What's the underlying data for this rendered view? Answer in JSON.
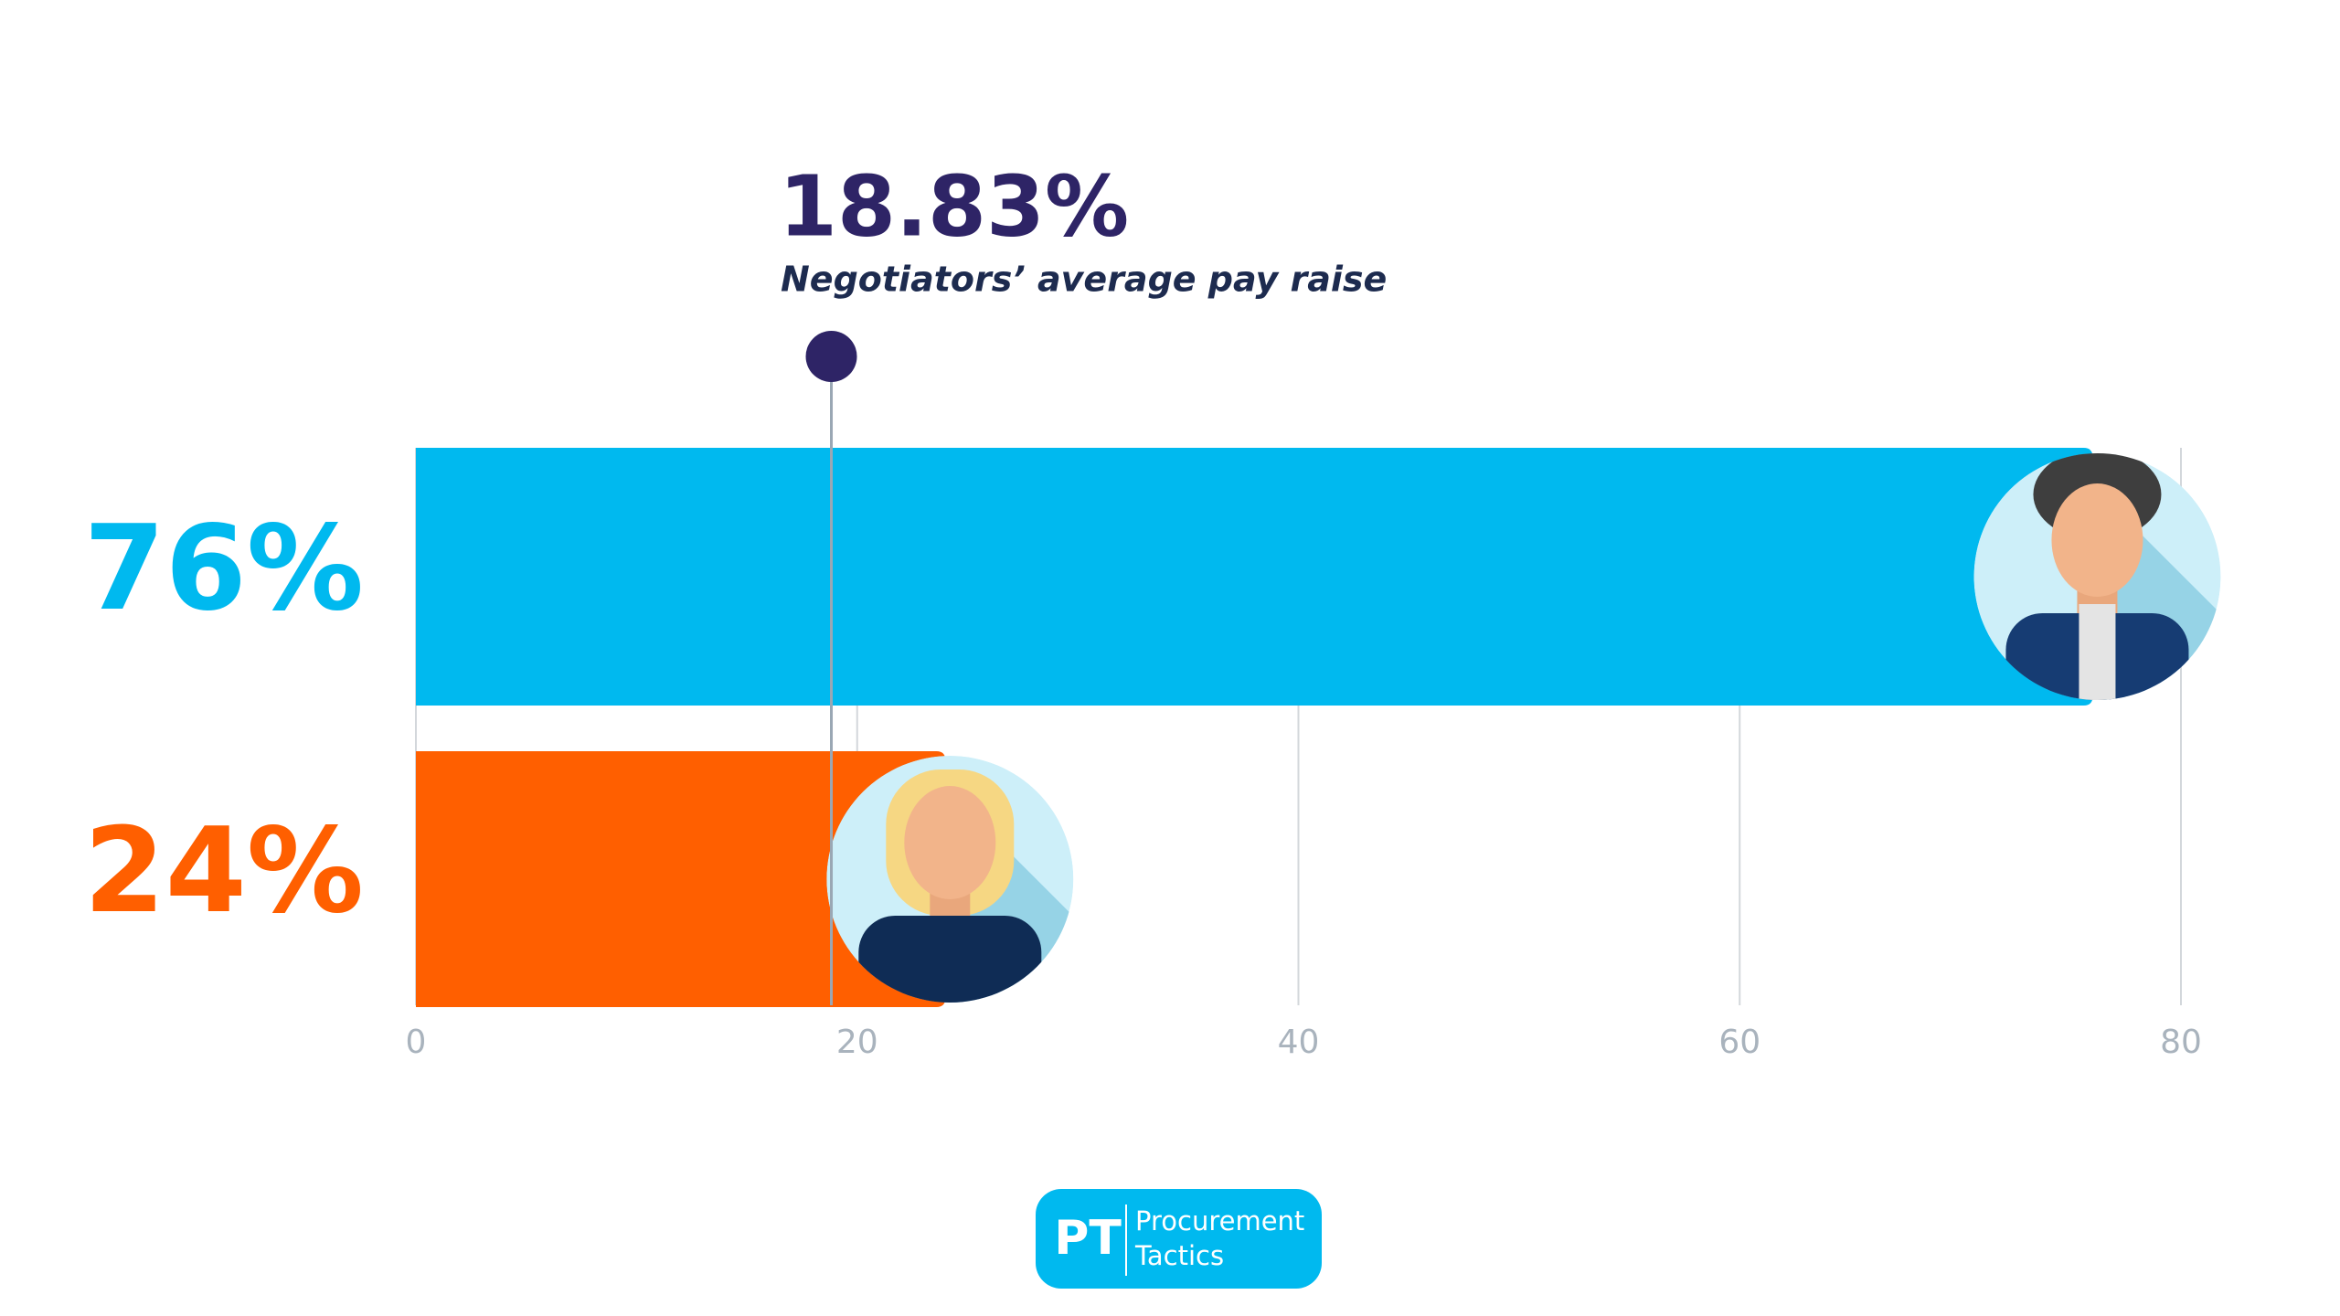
{
  "chart_data": {
    "type": "bar",
    "orientation": "horizontal",
    "values": [
      76,
      24
    ],
    "value_labels": [
      "76%",
      "24%"
    ],
    "colors": [
      "#00b9ef",
      "#ff5f00"
    ],
    "xlim": [
      0,
      80
    ],
    "xticks": [
      0,
      20,
      40,
      60,
      80
    ],
    "grid": true,
    "reference": {
      "value": 18.83,
      "label": "18.83%",
      "text": "Negotiators’ average pay raise",
      "color": "#2e2466"
    }
  },
  "logo": {
    "initials": "PT",
    "line1": "Procurement",
    "line2": "Tactics"
  }
}
